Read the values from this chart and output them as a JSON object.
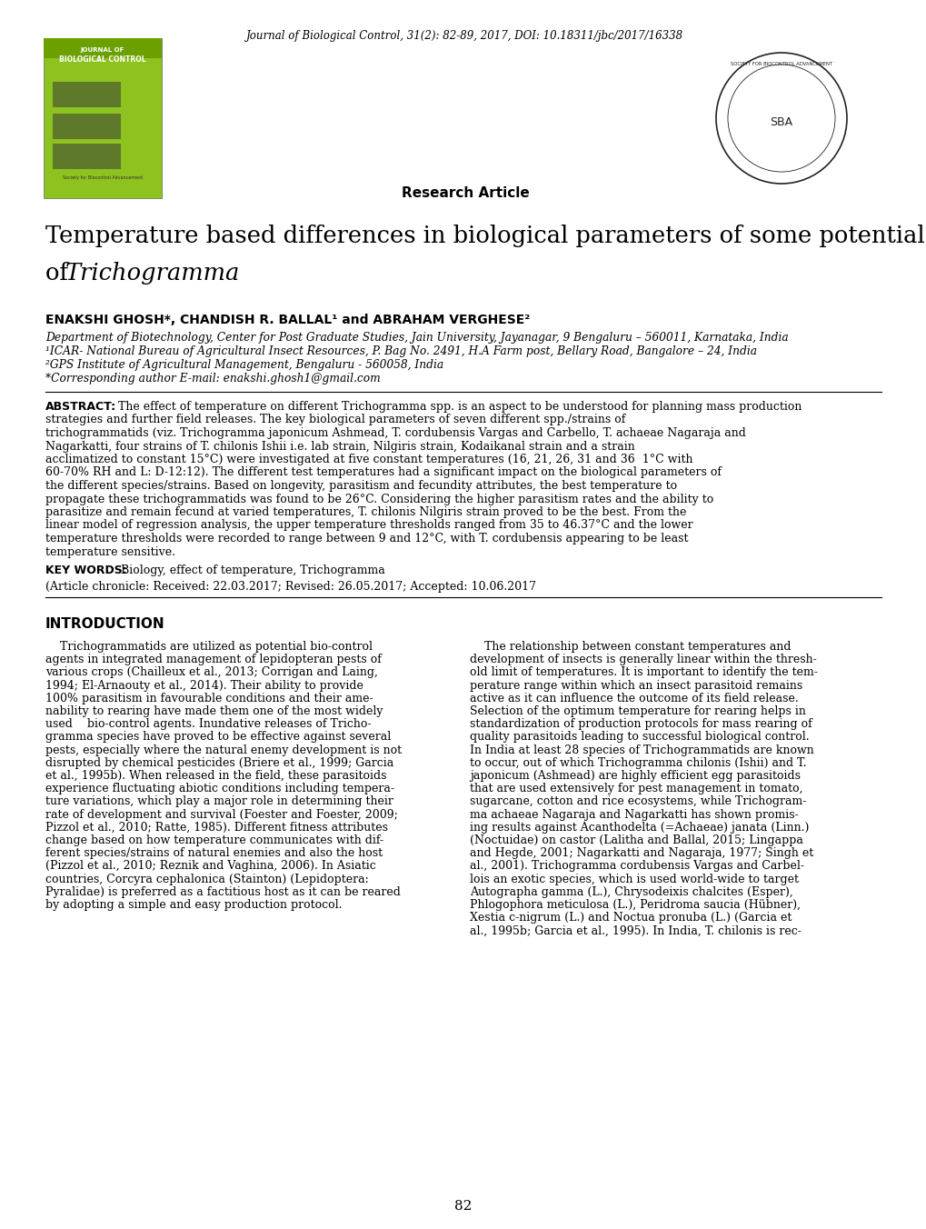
{
  "bg_color": "#ffffff",
  "page_width": 10.2,
  "page_height": 13.52,
  "journal_info": "Journal of Biological Control, 31(2): 82-89, 2017, DOI: 10.18311/jbc/2017/16338",
  "research_article_label": "Research Article",
  "title_line1": "Temperature based differences in biological parameters of some potential species/strains",
  "title_line2_normal": "of ",
  "title_line2_italic": "Trichogramma",
  "authors_bold": "ENAKSHI GHOSH*, CHANDISH R. BALLAL¹ and ABRAHAM VERGHESE²",
  "affiliation1": "Department of Biotechnology, Center for Post Graduate Studies, Jain University, Jayanagar, 9 Bengaluru – 560011, Karnataka, India",
  "affiliation2": "¹ICAR- National Bureau of Agricultural Insect Resources, P. Bag No. 2491, H.A Farm post, Bellary Road, Bangalore – 24, India",
  "affiliation3": "²GPS Institute of Agricultural Management, Bengaluru - 560058, India",
  "affiliation4": "*Corresponding author E-mail: enakshi.ghosh1@gmail.com",
  "abstract_text": "The effect of temperature on different Trichogramma spp. is an aspect to be understood for planning mass production strategies and further field releases. The key biological parameters of seven different spp./strains of trichogrammatids (viz. Trichogramma japonicum Ashmead, T. cordubensis Vargas and Carbello, T. achaeae Nagaraja and Nagarkatti, four strains of T. chilonis Ishii i.e. lab strain, Nilgiris strain, Kodaikanal strain and a strain acclimatized to constant 15°C) were investigated at five constant temperatures (16, 21, 26, 31 and 36  1°C with 60-70% RH and L: D-12:12). The different test temperatures had a significant impact on the biological parameters of the different species/strains. Based on longevity, parasitism and fecundity attributes, the best temperature to propagate these trichogrammatids was found to be 26°C. Considering the higher parasitism rates and the ability to parasitize and remain fecund at varied temperatures, T. chilonis Nilgiris strain proved to be the best. From the linear model of regression analysis, the upper temperature thresholds ranged from 35 to 46.37°C and the lower temperature thresholds were recorded to range between 9 and 12°C, with T. cordubensis appearing to be least temperature sensitive.",
  "keywords_text": "Biology, effect of temperature, Trichogramma",
  "article_chronicle": "(Article chronicle: Received: 22.03.2017; Revised: 26.05.2017; Accepted: 10.06.2017",
  "intro_heading": "INTRODUCTION",
  "intro_col1_lines": [
    "    Trichogrammatids are utilized as potential bio-control",
    "agents in integrated management of lepidopteran pests of",
    "various crops (Chailleux et al., 2013; Corrigan and Laing,",
    "1994; El-Arnaouty et al., 2014). Their ability to provide",
    "100% parasitism in favourable conditions and their ame-",
    "nability to rearing have made them one of the most widely",
    "used    bio-control agents. Inundative releases of Tricho-",
    "gramma species have proved to be effective against several",
    "pests, especially where the natural enemy development is not",
    "disrupted by chemical pesticides (Briere et al., 1999; Garcia",
    "et al., 1995b). When released in the field, these parasitoids",
    "experience fluctuating abiotic conditions including tempera-",
    "ture variations, which play a major role in determining their",
    "rate of development and survival (Foester and Foester, 2009;",
    "Pizzol et al., 2010; Ratte, 1985). Different fitness attributes",
    "change based on how temperature communicates with dif-",
    "ferent species/strains of natural enemies and also the host",
    "(Pizzol et al., 2010; Reznik and Vaghina, 2006). In Asiatic",
    "countries, Corcyra cephalonica (Stainton) (Lepidoptera:",
    "Pyralidae) is preferred as a factitious host as it can be reared",
    "by adopting a simple and easy production protocol."
  ],
  "intro_col2_lines": [
    "    The relationship between constant temperatures and",
    "development of insects is generally linear within the thresh-",
    "old limit of temperatures. It is important to identify the tem-",
    "perature range within which an insect parasitoid remains",
    "active as it can influence the outcome of its field release.",
    "Selection of the optimum temperature for rearing helps in",
    "standardization of production protocols for mass rearing of",
    "quality parasitoids leading to successful biological control.",
    "In India at least 28 species of Trichogrammatids are known",
    "to occur, out of which Trichogramma chilonis (Ishii) and T.",
    "japonicum (Ashmead) are highly efficient egg parasitoids",
    "that are used extensively for pest management in tomato,",
    "sugarcane, cotton and rice ecosystems, while Trichogram-",
    "ma achaeae Nagaraja and Nagarkatti has shown promis-",
    "ing results against Acanthodelta (=Achaeae) janata (Linn.)",
    "(Noctuidae) on castor (Lalitha and Ballal, 2015; Lingappa",
    "and Hegde, 2001; Nagarkatti and Nagaraja, 1977; Singh et",
    "al., 2001). Trichogramma cordubensis Vargas and Carbel-",
    "lois an exotic species, which is used world-wide to target",
    "Autographa gamma (L.), Chrysodeixis chalcites (Esper),",
    "Phlogophora meticulosa (L.), Peridroma saucia (Hübner),",
    "Xestia c-nigrum (L.) and Noctua pronuba (L.) (Garcia et",
    "al., 1995b; Garcia et al., 1995). In India, T. chilonis is rec-"
  ],
  "page_number": "82",
  "cover_color": "#8DC21F",
  "cover_color2": "#6ba000",
  "cover_label1": "JOURNAL OF",
  "cover_label2": "BIOLOGICAL CONTROL"
}
